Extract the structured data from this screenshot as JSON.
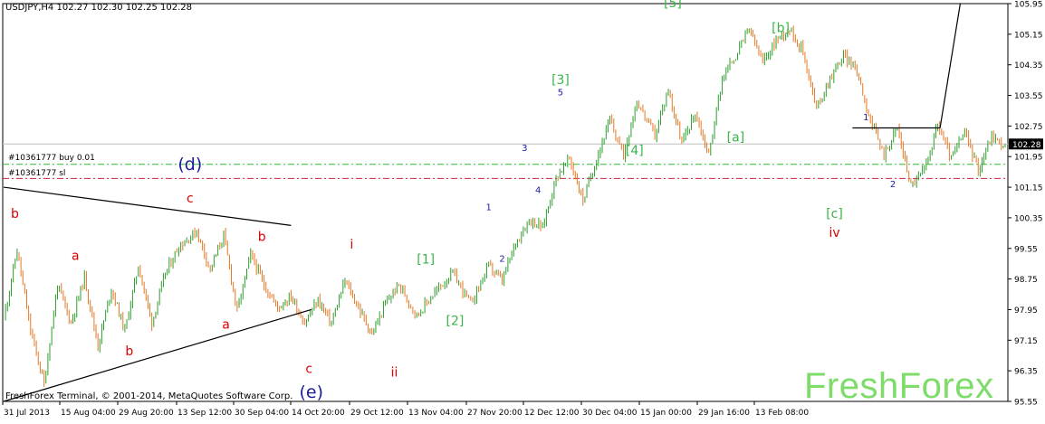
{
  "header": {
    "symbol": "USDJPY,H4",
    "ohlc": "102.27 102.30 102.25 102.28"
  },
  "footer": {
    "copyright": "FreshForex Terminal, © 2001-2014, MetaQuotes Software Corp.",
    "watermark": "FreshForex"
  },
  "order_lines": {
    "buy_label": "#10361777 buy 0.01",
    "sl_label": "#10361777 sl",
    "buy_price": 101.75,
    "sl_price": 101.38,
    "buy_color": "#2eb82e",
    "sl_color": "#d81b3c"
  },
  "colors": {
    "bull_candle": "#2e9e2e",
    "bear_candle": "#e87722",
    "grid": "#c8c8c8",
    "wave_red": "#e00000",
    "wave_green": "#39b54a",
    "wave_blue": "#1a1aa6"
  },
  "chart_data": {
    "type": "line",
    "symbol": "USDJPY",
    "timeframe": "H4",
    "current_price": "102.28",
    "ylim": [
      95.55,
      105.95
    ],
    "y_ticks": [
      "105.95",
      "105.15",
      "104.35",
      "103.55",
      "102.75",
      "101.95",
      "101.15",
      "100.35",
      "99.55",
      "98.75",
      "97.95",
      "97.15",
      "96.35",
      "95.55"
    ],
    "x_ticks": [
      "31 Jul 2013",
      "15 Aug 04:00",
      "29 Aug 20:00",
      "13 Sep 12:00",
      "30 Sep 04:00",
      "14 Oct 20:00",
      "29 Oct 12:00",
      "13 Nov 04:00",
      "27 Nov 20:00",
      "12 Dec 12:00",
      "30 Dec 04:00",
      "15 Jan 00:00",
      "29 Jan 16:00",
      "13 Feb 08:00"
    ],
    "series": [
      {
        "values": [
          [
            0,
            97.7
          ],
          [
            0.3,
            99.5
          ],
          [
            0.6,
            97.4
          ],
          [
            0.9,
            96.0
          ],
          [
            1.2,
            98.6
          ],
          [
            1.5,
            97.6
          ],
          [
            1.8,
            98.8
          ],
          [
            2.1,
            97.0
          ],
          [
            2.4,
            98.5
          ],
          [
            2.7,
            97.4
          ],
          [
            3.0,
            99.1
          ],
          [
            3.3,
            97.6
          ],
          [
            3.6,
            98.9
          ],
          [
            3.9,
            99.6
          ],
          [
            4.3,
            100.0
          ],
          [
            4.6,
            99.0
          ],
          [
            4.9,
            99.9
          ],
          [
            5.2,
            97.9
          ],
          [
            5.5,
            99.4
          ],
          [
            5.8,
            98.6
          ],
          [
            6.1,
            98.0
          ],
          [
            6.4,
            98.3
          ],
          [
            6.7,
            97.6
          ],
          [
            7.0,
            98.2
          ],
          [
            7.3,
            97.6
          ],
          [
            7.6,
            98.7
          ],
          [
            7.9,
            98.0
          ],
          [
            8.2,
            97.3
          ],
          [
            8.5,
            98.1
          ],
          [
            8.8,
            98.6
          ],
          [
            9.2,
            97.8
          ],
          [
            9.6,
            98.4
          ],
          [
            10.0,
            98.9
          ],
          [
            10.4,
            98.1
          ],
          [
            10.8,
            99.1
          ],
          [
            11.1,
            98.7
          ],
          [
            11.4,
            99.7
          ],
          [
            11.7,
            100.3
          ],
          [
            12.0,
            100.1
          ],
          [
            12.3,
            101.4
          ],
          [
            12.6,
            101.9
          ],
          [
            12.9,
            100.8
          ],
          [
            13.2,
            101.9
          ],
          [
            13.5,
            102.9
          ],
          [
            13.8,
            102.0
          ],
          [
            14.1,
            103.4
          ],
          [
            14.5,
            102.5
          ],
          [
            14.8,
            103.7
          ],
          [
            15.1,
            102.3
          ],
          [
            15.4,
            103.1
          ],
          [
            15.7,
            102.0
          ],
          [
            16.0,
            104.0
          ],
          [
            16.3,
            104.6
          ],
          [
            16.6,
            105.3
          ],
          [
            16.9,
            104.4
          ],
          [
            17.2,
            105.0
          ],
          [
            17.5,
            105.3
          ],
          [
            17.8,
            104.7
          ],
          [
            18.1,
            103.2
          ],
          [
            18.4,
            104.0
          ],
          [
            18.7,
            104.6
          ],
          [
            19.0,
            104.2
          ],
          [
            19.3,
            102.9
          ],
          [
            19.6,
            102.0
          ],
          [
            19.9,
            102.7
          ],
          [
            20.2,
            101.2
          ],
          [
            20.5,
            101.6
          ],
          [
            20.8,
            102.8
          ],
          [
            21.1,
            101.9
          ],
          [
            21.4,
            102.6
          ],
          [
            21.7,
            101.6
          ],
          [
            22.0,
            102.5
          ],
          [
            22.3,
            102.2
          ]
        ]
      }
    ],
    "annotations": {
      "wave_labels": [
        {
          "text": "b",
          "x": 0.25,
          "y": 100.35,
          "color": "red",
          "size": "m"
        },
        {
          "text": "a",
          "x": 1.6,
          "y": 99.25,
          "color": "red",
          "size": "m"
        },
        {
          "text": "b",
          "x": 2.8,
          "y": 96.75,
          "color": "red",
          "size": "m"
        },
        {
          "text": "c",
          "x": 4.15,
          "y": 100.75,
          "color": "red",
          "size": "m"
        },
        {
          "text": "(d)",
          "x": 4.15,
          "y": 101.6,
          "color": "navy",
          "size": "l"
        },
        {
          "text": "a",
          "x": 4.95,
          "y": 97.45,
          "color": "red",
          "size": "m"
        },
        {
          "text": "b",
          "x": 5.75,
          "y": 99.75,
          "color": "red",
          "size": "m"
        },
        {
          "text": "c",
          "x": 6.8,
          "y": 96.3,
          "color": "red",
          "size": "m"
        },
        {
          "text": "(e)",
          "x": 6.85,
          "y": 95.65,
          "color": "navy",
          "size": "l"
        },
        {
          "text": "i",
          "x": 7.75,
          "y": 99.55,
          "color": "red",
          "size": "m"
        },
        {
          "text": "ii",
          "x": 8.7,
          "y": 96.2,
          "color": "red",
          "size": "m"
        },
        {
          "text": "[1]",
          "x": 9.4,
          "y": 99.15,
          "color": "green",
          "size": "m"
        },
        {
          "text": "[2]",
          "x": 10.05,
          "y": 97.55,
          "color": "green",
          "size": "m"
        },
        {
          "text": "1",
          "x": 10.8,
          "y": 100.55,
          "color": "blue",
          "size": "s"
        },
        {
          "text": "2",
          "x": 11.1,
          "y": 99.2,
          "color": "blue",
          "size": "s"
        },
        {
          "text": "3",
          "x": 11.6,
          "y": 102.1,
          "color": "blue",
          "size": "s"
        },
        {
          "text": "4",
          "x": 11.9,
          "y": 101.0,
          "color": "blue",
          "size": "s"
        },
        {
          "text": "5",
          "x": 12.4,
          "y": 103.55,
          "color": "blue",
          "size": "s"
        },
        {
          "text": "[3]",
          "x": 12.4,
          "y": 103.85,
          "color": "green",
          "size": "m"
        },
        {
          "text": "[4]",
          "x": 14.05,
          "y": 102.0,
          "color": "green",
          "size": "m"
        },
        {
          "text": "[5]",
          "x": 14.9,
          "y": 105.85,
          "color": "green",
          "size": "m"
        },
        {
          "text": "[a]",
          "x": 16.3,
          "y": 102.35,
          "color": "green",
          "size": "m"
        },
        {
          "text": "[b]",
          "x": 17.3,
          "y": 105.2,
          "color": "green",
          "size": "m"
        },
        {
          "text": "1",
          "x": 19.2,
          "y": 102.9,
          "color": "navy",
          "size": "s"
        },
        {
          "text": "[c]",
          "x": 18.5,
          "y": 100.35,
          "color": "green",
          "size": "m"
        },
        {
          "text": "iv",
          "x": 18.5,
          "y": 99.85,
          "color": "red",
          "size": "m"
        },
        {
          "text": "2",
          "x": 19.8,
          "y": 101.15,
          "color": "blue",
          "size": "s"
        }
      ]
    },
    "trend_lines": [
      {
        "from": [
          0,
          101.15
        ],
        "to": [
          6.4,
          100.15
        ],
        "color": "black"
      },
      {
        "from": [
          0,
          95.55
        ],
        "to": [
          6.85,
          97.95
        ],
        "color": "black"
      },
      {
        "from": [
          18.9,
          102.7
        ],
        "to": [
          20.85,
          102.7
        ],
        "color": "black"
      },
      {
        "from": [
          20.85,
          102.7
        ],
        "to": [
          21.3,
          105.95
        ],
        "color": "black"
      }
    ]
  }
}
